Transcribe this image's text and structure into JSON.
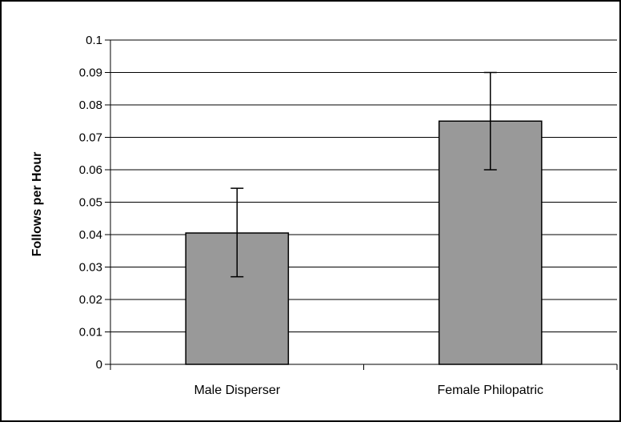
{
  "chart_data": {
    "type": "bar",
    "title": "",
    "xlabel": "",
    "ylabel": "Follows per Hour",
    "categories": [
      "Male Disperser",
      "Female Philopatric"
    ],
    "series": [
      {
        "values": [
          0.0405,
          0.075
        ],
        "error_low": [
          0.027,
          0.06
        ],
        "error_high": [
          0.0543,
          0.09
        ]
      }
    ],
    "ylim": [
      0,
      0.1
    ],
    "yticks": [
      "0",
      "0.01",
      "0.02",
      "0.03",
      "0.04",
      "0.05",
      "0.06",
      "0.07",
      "0.08",
      "0.09",
      "0.1"
    ],
    "grid": true,
    "legend": "none",
    "colors": {
      "bar_fill": "#999999",
      "bar_stroke": "#000000",
      "grid": "#000000",
      "background": "#ffffff"
    }
  }
}
